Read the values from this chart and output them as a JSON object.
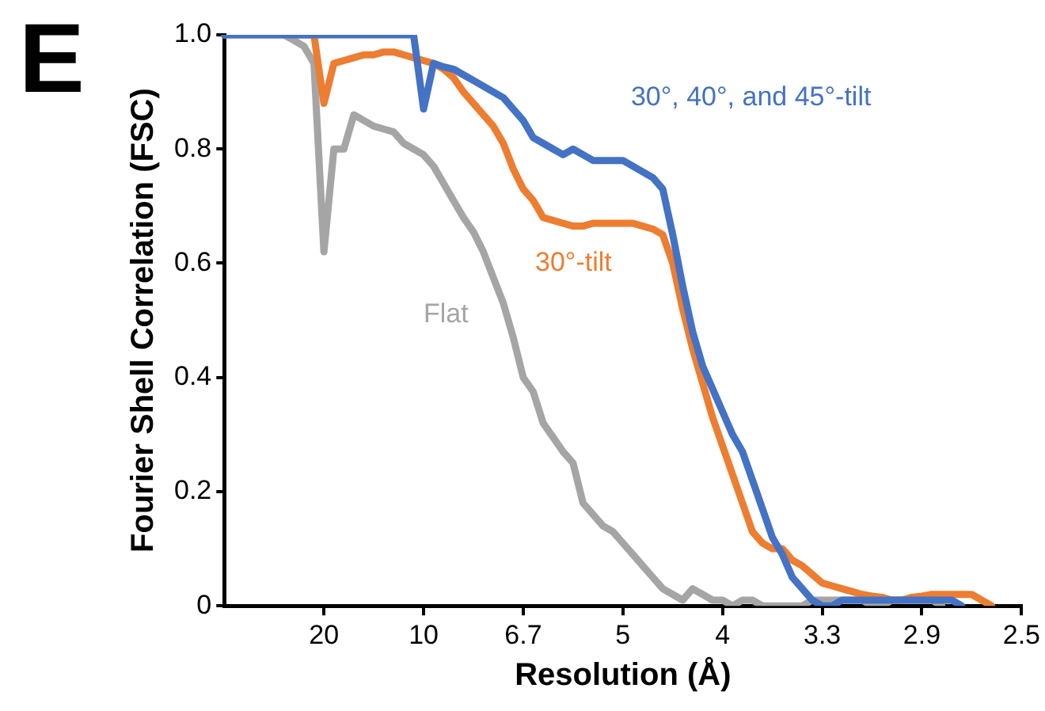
{
  "chart_data": {
    "type": "line",
    "xlabel": "Resolution (Å)",
    "ylabel": "Fourier Shell Correlation (FSC)",
    "annotations": [
      "E"
    ],
    "categories": [
      null,
      null,
      null,
      null,
      null,
      null,
      null,
      null,
      null,
      null,
      "20",
      null,
      null,
      null,
      null,
      null,
      null,
      null,
      null,
      null,
      "10",
      null,
      null,
      null,
      null,
      null,
      null,
      null,
      null,
      null,
      "6.7",
      null,
      null,
      null,
      null,
      null,
      null,
      null,
      null,
      null,
      "5",
      null,
      null,
      null,
      null,
      null,
      null,
      null,
      null,
      null,
      "4",
      null,
      null,
      null,
      null,
      null,
      null,
      null,
      null,
      null,
      "3.3",
      null,
      null,
      null,
      null,
      null,
      null,
      null,
      null,
      null,
      "2.9",
      null,
      null,
      null,
      null,
      null,
      null,
      null,
      null,
      null,
      "2.5"
    ],
    "ylim": [
      0,
      1
    ],
    "yticks": [
      0,
      0.2,
      0.4,
      0.6,
      {
        "value": 0.8,
        "label": "0.8"
      },
      {
        "value": 1,
        "label": "1.0"
      }
    ],
    "grid": false,
    "legend": false,
    "marker": "none",
    "line_style": "solid",
    "series": [
      {
        "name": "30°, 40°, and 45°-tilt",
        "color": "#4472c4",
        "values": [
          1,
          1,
          1,
          1,
          1,
          1,
          1,
          1,
          1,
          1,
          1,
          1,
          1,
          1,
          1,
          1,
          1,
          1,
          1,
          1,
          0.87,
          0.95,
          0.944,
          0.94,
          0.93,
          0.92,
          0.91,
          0.9,
          0.89,
          0.87,
          0.85,
          0.82,
          0.81,
          0.8,
          0.79,
          0.8,
          0.79,
          0.78,
          0.78,
          0.78,
          0.78,
          0.77,
          0.76,
          0.75,
          0.73,
          0.65,
          0.56,
          0.48,
          0.42,
          0.38,
          0.34,
          0.3,
          0.27,
          0.22,
          0.17,
          0.12,
          0.09,
          0.05,
          0.03,
          0.01,
          0,
          0,
          0.01,
          0.01,
          0.01,
          0.01,
          0.01,
          0.01,
          0.01,
          0.01,
          0.01,
          0.01,
          0.01,
          0.01,
          0,
          null,
          null,
          null,
          null,
          null,
          null
        ]
      },
      {
        "name": "30°-tilt",
        "color": "#ed7d31",
        "values": [
          null,
          null,
          null,
          null,
          null,
          null,
          null,
          1,
          1,
          1,
          0.88,
          0.95,
          0.955,
          0.96,
          0.965,
          0.965,
          0.97,
          0.97,
          0.965,
          0.96,
          0.955,
          0.95,
          0.94,
          0.925,
          0.9,
          0.88,
          0.86,
          0.84,
          0.81,
          0.765,
          0.73,
          0.71,
          0.68,
          0.675,
          0.67,
          0.665,
          0.665,
          0.67,
          0.67,
          0.67,
          0.67,
          0.67,
          0.665,
          0.66,
          0.65,
          0.6,
          0.52,
          0.45,
          0.39,
          0.33,
          0.28,
          0.23,
          0.18,
          0.13,
          0.11,
          0.1,
          0.1,
          0.08,
          0.07,
          0.055,
          0.04,
          0.035,
          0.03,
          0.025,
          0.02,
          0.017,
          0.015,
          0.01,
          0.01,
          0.015,
          0.017,
          0.02,
          0.02,
          0.02,
          0.02,
          0.02,
          0.01,
          0,
          null,
          null,
          null
        ]
      },
      {
        "name": "Flat",
        "color": "#a5a5a5",
        "values": [
          1,
          1,
          1,
          1,
          1,
          1,
          1,
          0.99,
          0.98,
          0.95,
          0.62,
          0.8,
          0.8,
          0.86,
          0.85,
          0.84,
          0.835,
          0.83,
          0.81,
          0.8,
          0.79,
          0.77,
          0.74,
          0.71,
          0.68,
          0.655,
          0.62,
          0.575,
          0.53,
          0.47,
          0.4,
          0.375,
          0.32,
          0.295,
          0.27,
          0.25,
          0.18,
          0.16,
          0.14,
          0.13,
          0.11,
          0.09,
          0.07,
          0.05,
          0.03,
          0.02,
          0.01,
          0.03,
          0.02,
          0.01,
          0.01,
          0,
          0.01,
          0.01,
          0,
          0,
          0,
          0,
          0,
          0.01,
          0.01,
          0.01,
          0.01,
          0.01,
          0.01,
          0,
          0,
          0.01,
          0.01,
          0.01,
          0.01,
          0.01,
          0,
          null,
          null,
          null,
          null,
          null,
          null,
          null,
          null
        ]
      }
    ]
  }
}
